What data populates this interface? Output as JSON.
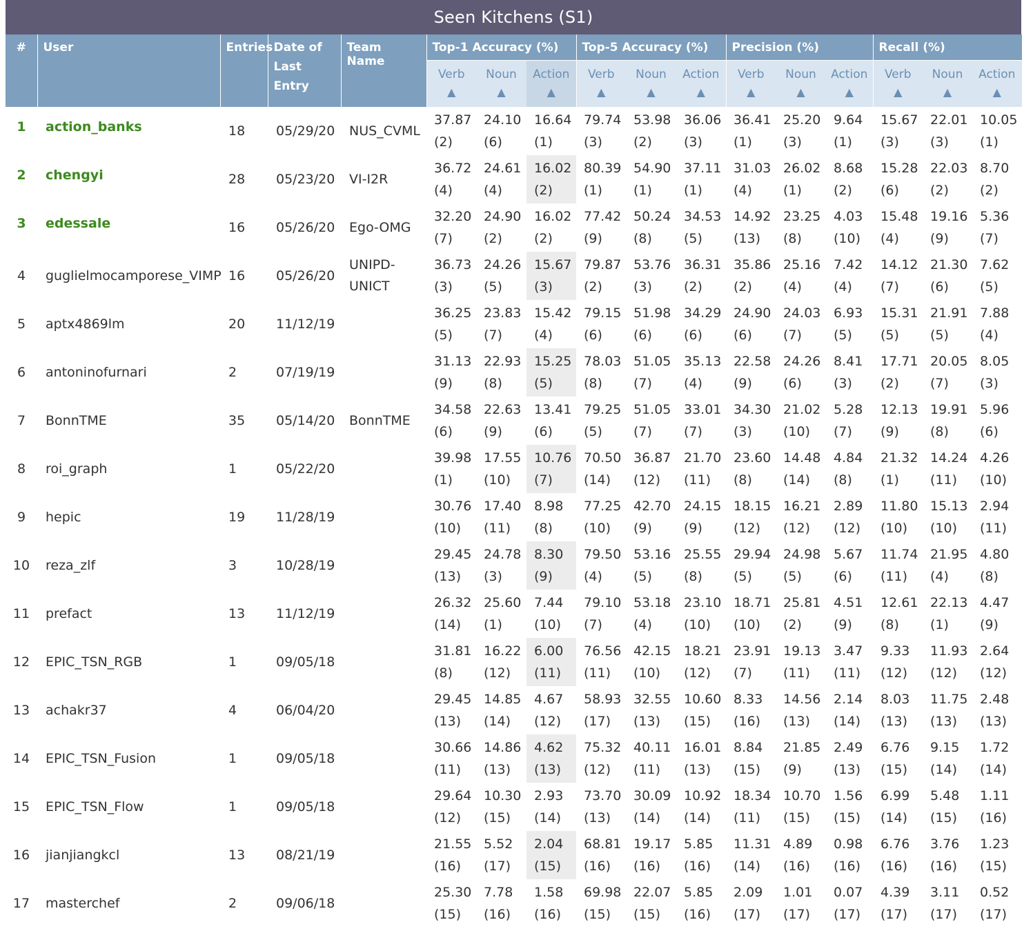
{
  "title": "Seen Kitchens (S1)",
  "headers": {
    "rank": "#",
    "user": "User",
    "entries": "Entries",
    "date": "Date of Last Entry",
    "team": "Team Name",
    "groups": [
      "Top-1 Accuracy (%)",
      "Top-5 Accuracy (%)",
      "Precision (%)",
      "Recall (%)"
    ],
    "subs": [
      "Verb",
      "Noun",
      "Action"
    ],
    "sort_glyph": "▲"
  },
  "rows": [
    {
      "rank": "1",
      "user": "action_banks",
      "entries": "18",
      "date": "05/29/20",
      "team": "NUS_CVML",
      "metrics": [
        [
          "37.87",
          "(2)"
        ],
        [
          "24.10",
          "(6)"
        ],
        [
          "16.64",
          "(1)"
        ],
        [
          "79.74",
          "(3)"
        ],
        [
          "53.98",
          "(2)"
        ],
        [
          "36.06",
          "(3)"
        ],
        [
          "36.41",
          "(1)"
        ],
        [
          "25.20",
          "(3)"
        ],
        [
          "9.64",
          "(1)"
        ],
        [
          "15.67",
          "(3)"
        ],
        [
          "22.01",
          "(3)"
        ],
        [
          "10.05",
          "(1)"
        ]
      ]
    },
    {
      "rank": "2",
      "user": "chengyi",
      "entries": "28",
      "date": "05/23/20",
      "team": "VI-I2R",
      "metrics": [
        [
          "36.72",
          "(4)"
        ],
        [
          "24.61",
          "(4)"
        ],
        [
          "16.02",
          "(2)"
        ],
        [
          "80.39",
          "(1)"
        ],
        [
          "54.90",
          "(1)"
        ],
        [
          "37.11",
          "(1)"
        ],
        [
          "31.03",
          "(4)"
        ],
        [
          "26.02",
          "(1)"
        ],
        [
          "8.68",
          "(2)"
        ],
        [
          "15.28",
          "(6)"
        ],
        [
          "22.03",
          "(2)"
        ],
        [
          "8.70",
          "(2)"
        ]
      ]
    },
    {
      "rank": "3",
      "user": "edessale",
      "entries": "16",
      "date": "05/26/20",
      "team": "Ego-OMG",
      "metrics": [
        [
          "32.20",
          "(7)"
        ],
        [
          "24.90",
          "(2)"
        ],
        [
          "16.02",
          "(2)"
        ],
        [
          "77.42",
          "(9)"
        ],
        [
          "50.24",
          "(8)"
        ],
        [
          "34.53",
          "(5)"
        ],
        [
          "14.92",
          "(13)"
        ],
        [
          "23.25",
          "(8)"
        ],
        [
          "4.03",
          "(10)"
        ],
        [
          "15.48",
          "(4)"
        ],
        [
          "19.16",
          "(9)"
        ],
        [
          "5.36",
          "(7)"
        ]
      ]
    },
    {
      "rank": "4",
      "user": "guglielmocamporese_VIMP",
      "entries": "16",
      "date": "05/26/20",
      "team": "UNIPD-UNICT",
      "metrics": [
        [
          "36.73",
          "(3)"
        ],
        [
          "24.26",
          "(5)"
        ],
        [
          "15.67",
          "(3)"
        ],
        [
          "79.87",
          "(2)"
        ],
        [
          "53.76",
          "(3)"
        ],
        [
          "36.31",
          "(2)"
        ],
        [
          "35.86",
          "(2)"
        ],
        [
          "25.16",
          "(4)"
        ],
        [
          "7.42",
          "(4)"
        ],
        [
          "14.12",
          "(7)"
        ],
        [
          "21.30",
          "(6)"
        ],
        [
          "7.62",
          "(5)"
        ]
      ]
    },
    {
      "rank": "5",
      "user": "aptx4869lm",
      "entries": "20",
      "date": "11/12/19",
      "team": "",
      "metrics": [
        [
          "36.25",
          "(5)"
        ],
        [
          "23.83",
          "(7)"
        ],
        [
          "15.42",
          "(4)"
        ],
        [
          "79.15",
          "(6)"
        ],
        [
          "51.98",
          "(6)"
        ],
        [
          "34.29",
          "(6)"
        ],
        [
          "24.90",
          "(6)"
        ],
        [
          "24.03",
          "(7)"
        ],
        [
          "6.93",
          "(5)"
        ],
        [
          "15.31",
          "(5)"
        ],
        [
          "21.91",
          "(5)"
        ],
        [
          "7.88",
          "(4)"
        ]
      ]
    },
    {
      "rank": "6",
      "user": "antoninofurnari",
      "entries": "2",
      "date": "07/19/19",
      "team": "",
      "metrics": [
        [
          "31.13",
          "(9)"
        ],
        [
          "22.93",
          "(8)"
        ],
        [
          "15.25",
          "(5)"
        ],
        [
          "78.03",
          "(8)"
        ],
        [
          "51.05",
          "(7)"
        ],
        [
          "35.13",
          "(4)"
        ],
        [
          "22.58",
          "(9)"
        ],
        [
          "24.26",
          "(6)"
        ],
        [
          "8.41",
          "(3)"
        ],
        [
          "17.71",
          "(2)"
        ],
        [
          "20.05",
          "(7)"
        ],
        [
          "8.05",
          "(3)"
        ]
      ]
    },
    {
      "rank": "7",
      "user": "BonnTME",
      "entries": "35",
      "date": "05/14/20",
      "team": "BonnTME",
      "metrics": [
        [
          "34.58",
          "(6)"
        ],
        [
          "22.63",
          "(9)"
        ],
        [
          "13.41",
          "(6)"
        ],
        [
          "79.25",
          "(5)"
        ],
        [
          "51.05",
          "(7)"
        ],
        [
          "33.01",
          "(7)"
        ],
        [
          "34.30",
          "(3)"
        ],
        [
          "21.02",
          "(10)"
        ],
        [
          "5.28",
          "(7)"
        ],
        [
          "12.13",
          "(9)"
        ],
        [
          "19.91",
          "(8)"
        ],
        [
          "5.96",
          "(6)"
        ]
      ]
    },
    {
      "rank": "8",
      "user": "roi_graph",
      "entries": "1",
      "date": "05/22/20",
      "team": "",
      "metrics": [
        [
          "39.98",
          "(1)"
        ],
        [
          "17.55",
          "(10)"
        ],
        [
          "10.76",
          "(7)"
        ],
        [
          "70.50",
          "(14)"
        ],
        [
          "36.87",
          "(12)"
        ],
        [
          "21.70",
          "(11)"
        ],
        [
          "23.60",
          "(8)"
        ],
        [
          "14.48",
          "(14)"
        ],
        [
          "4.84",
          "(8)"
        ],
        [
          "21.32",
          "(1)"
        ],
        [
          "14.24",
          "(11)"
        ],
        [
          "4.26",
          "(10)"
        ]
      ]
    },
    {
      "rank": "9",
      "user": "hepic",
      "entries": "19",
      "date": "11/28/19",
      "team": "",
      "metrics": [
        [
          "30.76",
          "(10)"
        ],
        [
          "17.40",
          "(11)"
        ],
        [
          "8.98",
          "(8)"
        ],
        [
          "77.25",
          "(10)"
        ],
        [
          "42.70",
          "(9)"
        ],
        [
          "24.15",
          "(9)"
        ],
        [
          "18.15",
          "(12)"
        ],
        [
          "16.21",
          "(12)"
        ],
        [
          "2.89",
          "(12)"
        ],
        [
          "11.80",
          "(10)"
        ],
        [
          "15.13",
          "(10)"
        ],
        [
          "2.94",
          "(11)"
        ]
      ]
    },
    {
      "rank": "10",
      "user": "reza_zlf",
      "entries": "3",
      "date": "10/28/19",
      "team": "",
      "metrics": [
        [
          "29.45",
          "(13)"
        ],
        [
          "24.78",
          "(3)"
        ],
        [
          "8.30",
          "(9)"
        ],
        [
          "79.50",
          "(4)"
        ],
        [
          "53.16",
          "(5)"
        ],
        [
          "25.55",
          "(8)"
        ],
        [
          "29.94",
          "(5)"
        ],
        [
          "24.98",
          "(5)"
        ],
        [
          "5.67",
          "(6)"
        ],
        [
          "11.74",
          "(11)"
        ],
        [
          "21.95",
          "(4)"
        ],
        [
          "4.80",
          "(8)"
        ]
      ]
    },
    {
      "rank": "11",
      "user": "prefact",
      "entries": "13",
      "date": "11/12/19",
      "team": "",
      "metrics": [
        [
          "26.32",
          "(14)"
        ],
        [
          "25.60",
          "(1)"
        ],
        [
          "7.44",
          "(10)"
        ],
        [
          "79.10",
          "(7)"
        ],
        [
          "53.18",
          "(4)"
        ],
        [
          "23.10",
          "(10)"
        ],
        [
          "18.71",
          "(10)"
        ],
        [
          "25.81",
          "(2)"
        ],
        [
          "4.51",
          "(9)"
        ],
        [
          "12.61",
          "(8)"
        ],
        [
          "22.13",
          "(1)"
        ],
        [
          "4.47",
          "(9)"
        ]
      ]
    },
    {
      "rank": "12",
      "user": "EPIC_TSN_RGB",
      "entries": "1",
      "date": "09/05/18",
      "team": "",
      "metrics": [
        [
          "31.81",
          "(8)"
        ],
        [
          "16.22",
          "(12)"
        ],
        [
          "6.00",
          "(11)"
        ],
        [
          "76.56",
          "(11)"
        ],
        [
          "42.15",
          "(10)"
        ],
        [
          "18.21",
          "(12)"
        ],
        [
          "23.91",
          "(7)"
        ],
        [
          "19.13",
          "(11)"
        ],
        [
          "3.47",
          "(11)"
        ],
        [
          "9.33",
          "(12)"
        ],
        [
          "11.93",
          "(12)"
        ],
        [
          "2.64",
          "(12)"
        ]
      ]
    },
    {
      "rank": "13",
      "user": "achakr37",
      "entries": "4",
      "date": "06/04/20",
      "team": "",
      "metrics": [
        [
          "29.45",
          "(13)"
        ],
        [
          "14.85",
          "(14)"
        ],
        [
          "4.67",
          "(12)"
        ],
        [
          "58.93",
          "(17)"
        ],
        [
          "32.55",
          "(13)"
        ],
        [
          "10.60",
          "(15)"
        ],
        [
          "8.33",
          "(16)"
        ],
        [
          "14.56",
          "(13)"
        ],
        [
          "2.14",
          "(14)"
        ],
        [
          "8.03",
          "(13)"
        ],
        [
          "11.75",
          "(13)"
        ],
        [
          "2.48",
          "(13)"
        ]
      ]
    },
    {
      "rank": "14",
      "user": "EPIC_TSN_Fusion",
      "entries": "1",
      "date": "09/05/18",
      "team": "",
      "metrics": [
        [
          "30.66",
          "(11)"
        ],
        [
          "14.86",
          "(13)"
        ],
        [
          "4.62",
          "(13)"
        ],
        [
          "75.32",
          "(12)"
        ],
        [
          "40.11",
          "(11)"
        ],
        [
          "16.01",
          "(13)"
        ],
        [
          "8.84",
          "(15)"
        ],
        [
          "21.85",
          "(9)"
        ],
        [
          "2.49",
          "(13)"
        ],
        [
          "6.76",
          "(15)"
        ],
        [
          "9.15",
          "(14)"
        ],
        [
          "1.72",
          "(14)"
        ]
      ]
    },
    {
      "rank": "15",
      "user": "EPIC_TSN_Flow",
      "entries": "1",
      "date": "09/05/18",
      "team": "",
      "metrics": [
        [
          "29.64",
          "(12)"
        ],
        [
          "10.30",
          "(15)"
        ],
        [
          "2.93",
          "(14)"
        ],
        [
          "73.70",
          "(13)"
        ],
        [
          "30.09",
          "(14)"
        ],
        [
          "10.92",
          "(14)"
        ],
        [
          "18.34",
          "(11)"
        ],
        [
          "10.70",
          "(15)"
        ],
        [
          "1.56",
          "(15)"
        ],
        [
          "6.99",
          "(14)"
        ],
        [
          "5.48",
          "(15)"
        ],
        [
          "1.11",
          "(16)"
        ]
      ]
    },
    {
      "rank": "16",
      "user": "jianjiangkcl",
      "entries": "13",
      "date": "08/21/19",
      "team": "",
      "metrics": [
        [
          "21.55",
          "(16)"
        ],
        [
          "5.52",
          "(17)"
        ],
        [
          "2.04",
          "(15)"
        ],
        [
          "68.81",
          "(16)"
        ],
        [
          "19.17",
          "(16)"
        ],
        [
          "5.85",
          "(16)"
        ],
        [
          "11.31",
          "(14)"
        ],
        [
          "4.89",
          "(16)"
        ],
        [
          "0.98",
          "(16)"
        ],
        [
          "6.76",
          "(16)"
        ],
        [
          "3.76",
          "(16)"
        ],
        [
          "1.23",
          "(15)"
        ]
      ]
    },
    {
      "rank": "17",
      "user": "masterchef",
      "entries": "2",
      "date": "09/06/18",
      "team": "",
      "metrics": [
        [
          "25.30",
          "(15)"
        ],
        [
          "7.78",
          "(16)"
        ],
        [
          "1.58",
          "(16)"
        ],
        [
          "69.98",
          "(15)"
        ],
        [
          "22.07",
          "(15)"
        ],
        [
          "5.85",
          "(16)"
        ],
        [
          "2.09",
          "(17)"
        ],
        [
          "1.01",
          "(17)"
        ],
        [
          "0.07",
          "(17)"
        ],
        [
          "4.39",
          "(17)"
        ],
        [
          "3.11",
          "(17)"
        ],
        [
          "0.52",
          "(17)"
        ]
      ]
    }
  ]
}
